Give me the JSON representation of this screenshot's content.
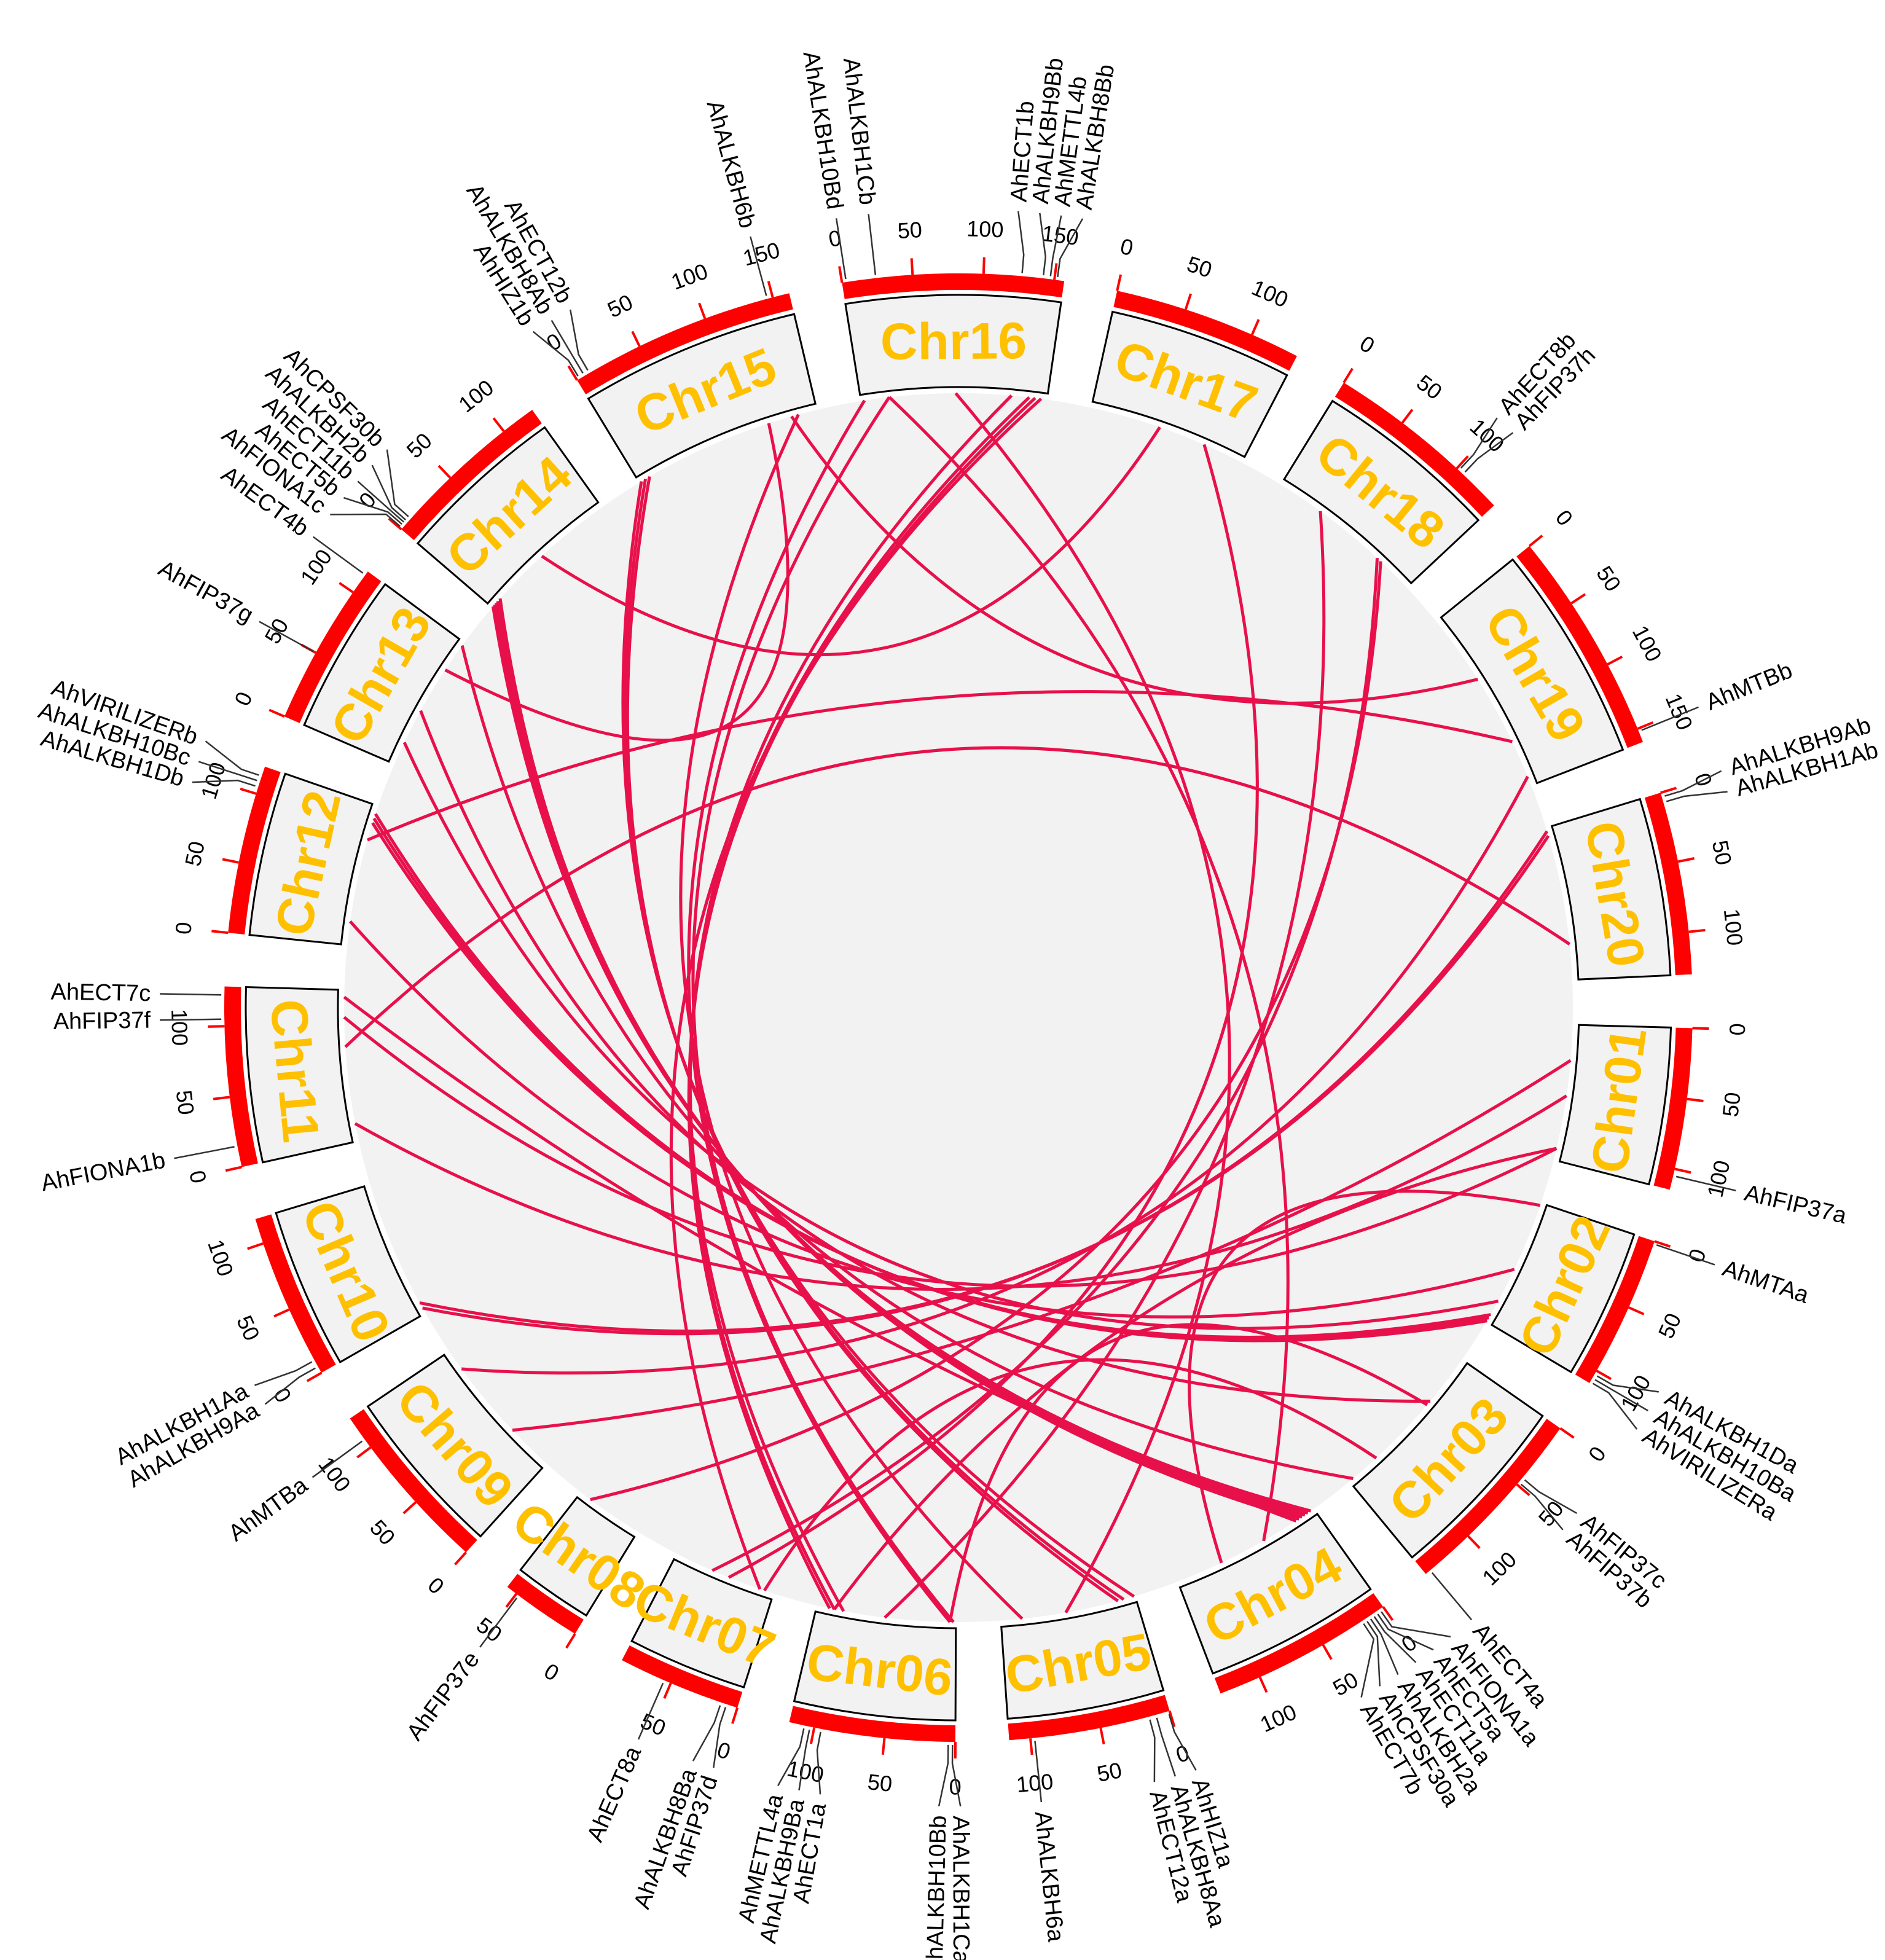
{
  "colors": {
    "chromosome_bar": "#FF0000",
    "chromosome_box_fill": "#F2F2F2",
    "chromosome_label": "#FFC000",
    "link_highlight": "#E8104A",
    "link_background": "#D9D9D9",
    "circle_fill": "#F2F2F2"
  },
  "chromosomes": [
    {
      "name": "Chr01",
      "length": 115,
      "ticks": [
        "0",
        "50",
        "100"
      ]
    },
    {
      "name": "Chr02",
      "length": 110,
      "ticks": [
        "0",
        "50",
        "100"
      ]
    },
    {
      "name": "Chr03",
      "length": 140,
      "ticks": [
        "0",
        "50",
        "100"
      ]
    },
    {
      "name": "Chr04",
      "length": 130,
      "ticks": [
        "0",
        "50",
        "100"
      ]
    },
    {
      "name": "Chr05",
      "length": 115,
      "ticks": [
        "0",
        "50",
        "100"
      ]
    },
    {
      "name": "Chr06",
      "length": 118,
      "ticks": [
        "0",
        "50",
        "100"
      ]
    },
    {
      "name": "Chr07",
      "length": 88,
      "ticks": [
        "0",
        "50"
      ]
    },
    {
      "name": "Chr08",
      "length": 58,
      "ticks": [
        "0",
        "50"
      ]
    },
    {
      "name": "Chr09",
      "length": 125,
      "ticks": [
        "0",
        "50",
        "100"
      ]
    },
    {
      "name": "Chr10",
      "length": 118,
      "ticks": [
        "0",
        "50",
        "100"
      ]
    },
    {
      "name": "Chr11",
      "length": 128,
      "ticks": [
        "0",
        "50",
        "100"
      ]
    },
    {
      "name": "Chr12",
      "length": 120,
      "ticks": [
        "0",
        "50",
        "100"
      ]
    },
    {
      "name": "Chr13",
      "length": 118,
      "ticks": [
        "0",
        "50",
        "100"
      ]
    },
    {
      "name": "Chr14",
      "length": 125,
      "ticks": [
        "0",
        "50",
        "100"
      ]
    },
    {
      "name": "Chr15",
      "length": 162,
      "ticks": [
        "0",
        "50",
        "100",
        "150"
      ]
    },
    {
      "name": "Chr16",
      "length": 157,
      "ticks": [
        "0",
        "50",
        "100",
        "150"
      ]
    },
    {
      "name": "Chr17",
      "length": 135,
      "ticks": [
        "0",
        "50",
        "100"
      ]
    },
    {
      "name": "Chr18",
      "length": 137,
      "ticks": [
        "0",
        "50",
        "100"
      ]
    },
    {
      "name": "Chr19",
      "length": 160,
      "ticks": [
        "0",
        "50",
        "100",
        "150"
      ]
    },
    {
      "name": "Chr20",
      "length": 130,
      "ticks": [
        "0",
        "50",
        "100"
      ]
    }
  ],
  "genes": [
    {
      "name": "AhFIP37a",
      "chr": "Chr01",
      "pos": 105
    },
    {
      "name": "AhMTAa",
      "chr": "Chr02",
      "pos": 2
    },
    {
      "name": "AhALKBH1Da",
      "chr": "Chr02",
      "pos": 103
    },
    {
      "name": "AhALKBH10Ba",
      "chr": "Chr02",
      "pos": 106
    },
    {
      "name": "AhVIRILIZERa",
      "chr": "Chr02",
      "pos": 109
    },
    {
      "name": "AhFIP37c",
      "chr": "Chr03",
      "pos": 44
    },
    {
      "name": "AhFIP37b",
      "chr": "Chr03",
      "pos": 48
    },
    {
      "name": "AhECT4a",
      "chr": "Chr03",
      "pos": 136
    },
    {
      "name": "AhFIONA1a",
      "chr": "Chr04",
      "pos": 3
    },
    {
      "name": "AhECT5a",
      "chr": "Chr04",
      "pos": 6
    },
    {
      "name": "AhECT11a",
      "chr": "Chr04",
      "pos": 9
    },
    {
      "name": "AhALKBH2a",
      "chr": "Chr04",
      "pos": 12
    },
    {
      "name": "AhCPSF30a",
      "chr": "Chr04",
      "pos": 15
    },
    {
      "name": "AhECT7b",
      "chr": "Chr04",
      "pos": 18
    },
    {
      "name": "AhHIZ1a",
      "chr": "Chr05",
      "pos": 1
    },
    {
      "name": "AhALKBH8Aa",
      "chr": "Chr05",
      "pos": 10
    },
    {
      "name": "AhECT12a",
      "chr": "Chr05",
      "pos": 15
    },
    {
      "name": "AhALKBH6a",
      "chr": "Chr05",
      "pos": 97
    },
    {
      "name": "AhALKBH1Ca",
      "chr": "Chr06",
      "pos": 2
    },
    {
      "name": "AhALKBH10Bb",
      "chr": "Chr06",
      "pos": 5
    },
    {
      "name": "AhECT1a",
      "chr": "Chr06",
      "pos": 95
    },
    {
      "name": "AhALKBH9Ba",
      "chr": "Chr06",
      "pos": 103
    },
    {
      "name": "AhMETTL4a",
      "chr": "Chr06",
      "pos": 107
    },
    {
      "name": "AhFIP37d",
      "chr": "Chr07",
      "pos": 8
    },
    {
      "name": "AhALKBH8Ba",
      "chr": "Chr07",
      "pos": 12
    },
    {
      "name": "AhECT8a",
      "chr": "Chr07",
      "pos": 55
    },
    {
      "name": "AhFIP37e",
      "chr": "Chr08",
      "pos": 48
    },
    {
      "name": "AhMTBa",
      "chr": "Chr09",
      "pos": 107
    },
    {
      "name": "AhALKBH9Aa",
      "chr": "Chr10",
      "pos": 5
    },
    {
      "name": "AhALKBH1Aa",
      "chr": "Chr10",
      "pos": 10
    },
    {
      "name": "AhFIONA1b",
      "chr": "Chr11",
      "pos": 15
    },
    {
      "name": "AhFIP37f",
      "chr": "Chr11",
      "pos": 105
    },
    {
      "name": "AhECT7c",
      "chr": "Chr11",
      "pos": 122
    },
    {
      "name": "AhALKBH1Db",
      "chr": "Chr12",
      "pos": 105
    },
    {
      "name": "AhALKBH10Bc",
      "chr": "Chr12",
      "pos": 109
    },
    {
      "name": "AhVIRILIZERb",
      "chr": "Chr12",
      "pos": 113
    },
    {
      "name": "AhFIP37g",
      "chr": "Chr13",
      "pos": 50
    },
    {
      "name": "AhECT4b",
      "chr": "Chr13",
      "pos": 115
    },
    {
      "name": "AhFIONA1c",
      "chr": "Chr14",
      "pos": 1
    },
    {
      "name": "AhECT5b",
      "chr": "Chr14",
      "pos": 3
    },
    {
      "name": "AhECT11b",
      "chr": "Chr14",
      "pos": 5
    },
    {
      "name": "AhALKBH2b",
      "chr": "Chr14",
      "pos": 7
    },
    {
      "name": "AhCPSF30b",
      "chr": "Chr14",
      "pos": 10
    },
    {
      "name": "AhHIZ1b",
      "chr": "Chr15",
      "pos": 2
    },
    {
      "name": "AhALKBH8Ab",
      "chr": "Chr15",
      "pos": 6
    },
    {
      "name": "AhECT12b",
      "chr": "Chr15",
      "pos": 10
    },
    {
      "name": "AhALKBH6b",
      "chr": "Chr15",
      "pos": 146
    },
    {
      "name": "AhALKBH10Bd",
      "chr": "Chr16",
      "pos": 3
    },
    {
      "name": "AhALKBH1Cb",
      "chr": "Chr16",
      "pos": 24
    },
    {
      "name": "AhECT1b",
      "chr": "Chr16",
      "pos": 127
    },
    {
      "name": "AhALKBH9Bb",
      "chr": "Chr16",
      "pos": 142
    },
    {
      "name": "AhMETTL4b",
      "chr": "Chr16",
      "pos": 147
    },
    {
      "name": "AhALKBH8Bb",
      "chr": "Chr16",
      "pos": 152
    },
    {
      "name": "AhECT8b",
      "chr": "Chr18",
      "pos": 102
    },
    {
      "name": "AhFIP37h",
      "chr": "Chr18",
      "pos": 106
    },
    {
      "name": "AhMTBb",
      "chr": "Chr19",
      "pos": 152
    },
    {
      "name": "AhALKBH9Ab",
      "chr": "Chr20",
      "pos": 3
    },
    {
      "name": "AhALKBH1Ab",
      "chr": "Chr20",
      "pos": 7
    }
  ],
  "links": [
    {
      "from": [
        "Chr01",
        105
      ],
      "to": [
        "Chr11",
        105
      ]
    },
    {
      "from": [
        "Chr01",
        105
      ],
      "to": [
        "Chr06",
        103
      ]
    },
    {
      "from": [
        "Chr02",
        103
      ],
      "to": [
        "Chr12",
        105
      ]
    },
    {
      "from": [
        "Chr02",
        106
      ],
      "to": [
        "Chr12",
        109
      ]
    },
    {
      "from": [
        "Chr02",
        109
      ],
      "to": [
        "Chr12",
        113
      ]
    },
    {
      "from": [
        "Chr02",
        2
      ],
      "to": [
        "Chr04",
        90
      ]
    },
    {
      "from": [
        "Chr03",
        44
      ],
      "to": [
        "Chr13",
        50
      ]
    },
    {
      "from": [
        "Chr03",
        48
      ],
      "to": [
        "Chr06",
        5
      ]
    },
    {
      "from": [
        "Chr03",
        136
      ],
      "to": [
        "Chr13",
        115
      ]
    },
    {
      "from": [
        "Chr04",
        3
      ],
      "to": [
        "Chr14",
        1
      ]
    },
    {
      "from": [
        "Chr04",
        6
      ],
      "to": [
        "Chr14",
        3
      ]
    },
    {
      "from": [
        "Chr04",
        9
      ],
      "to": [
        "Chr14",
        5
      ]
    },
    {
      "from": [
        "Chr04",
        12
      ],
      "to": [
        "Chr14",
        7
      ]
    },
    {
      "from": [
        "Chr04",
        15
      ],
      "to": [
        "Chr14",
        10
      ]
    },
    {
      "from": [
        "Chr04",
        18
      ],
      "to": [
        "Chr11",
        122
      ]
    },
    {
      "from": [
        "Chr04",
        50
      ],
      "to": [
        "Chr16",
        24
      ]
    },
    {
      "from": [
        "Chr05",
        1
      ],
      "to": [
        "Chr15",
        2
      ]
    },
    {
      "from": [
        "Chr05",
        10
      ],
      "to": [
        "Chr15",
        6
      ]
    },
    {
      "from": [
        "Chr05",
        15
      ],
      "to": [
        "Chr15",
        10
      ]
    },
    {
      "from": [
        "Chr05",
        97
      ],
      "to": [
        "Chr15",
        146
      ]
    },
    {
      "from": [
        "Chr06",
        2
      ],
      "to": [
        "Chr16",
        24
      ]
    },
    {
      "from": [
        "Chr06",
        5
      ],
      "to": [
        "Chr16",
        3
      ]
    },
    {
      "from": [
        "Chr06",
        95
      ],
      "to": [
        "Chr16",
        127
      ]
    },
    {
      "from": [
        "Chr06",
        103
      ],
      "to": [
        "Chr16",
        142
      ]
    },
    {
      "from": [
        "Chr06",
        107
      ],
      "to": [
        "Chr16",
        147
      ]
    },
    {
      "from": [
        "Chr07",
        8
      ],
      "to": [
        "Chr03",
        110
      ]
    },
    {
      "from": [
        "Chr07",
        12
      ],
      "to": [
        "Chr16",
        152
      ]
    },
    {
      "from": [
        "Chr07",
        55
      ],
      "to": [
        "Chr18",
        102
      ]
    },
    {
      "from": [
        "Chr08",
        48
      ],
      "to": [
        "Chr18",
        106
      ]
    },
    {
      "from": [
        "Chr09",
        107
      ],
      "to": [
        "Chr19",
        152
      ]
    },
    {
      "from": [
        "Chr10",
        5
      ],
      "to": [
        "Chr20",
        3
      ]
    },
    {
      "from": [
        "Chr10",
        10
      ],
      "to": [
        "Chr20",
        7
      ]
    },
    {
      "from": [
        "Chr11",
        15
      ],
      "to": [
        "Chr01",
        60
      ]
    },
    {
      "from": [
        "Chr12",
        90
      ],
      "to": [
        "Chr19",
        120
      ]
    },
    {
      "from": [
        "Chr12",
        20
      ],
      "to": [
        "Chr02",
        60
      ]
    },
    {
      "from": [
        "Chr13",
        90
      ],
      "to": [
        "Chr15",
        120
      ]
    },
    {
      "from": [
        "Chr13",
        20
      ],
      "to": [
        "Chr02",
        90
      ]
    },
    {
      "from": [
        "Chr14",
        60
      ],
      "to": [
        "Chr17",
        60
      ]
    },
    {
      "from": [
        "Chr15",
        140
      ],
      "to": [
        "Chr19",
        60
      ]
    },
    {
      "from": [
        "Chr16",
        80
      ],
      "to": [
        "Chr05",
        60
      ]
    },
    {
      "from": [
        "Chr17",
        100
      ],
      "to": [
        "Chr07",
        40
      ]
    },
    {
      "from": [
        "Chr18",
        40
      ],
      "to": [
        "Chr06",
        60
      ]
    },
    {
      "from": [
        "Chr11",
        80
      ],
      "to": [
        "Chr20",
        100
      ]
    },
    {
      "from": [
        "Chr09",
        40
      ],
      "to": [
        "Chr01",
        30
      ]
    }
  ]
}
